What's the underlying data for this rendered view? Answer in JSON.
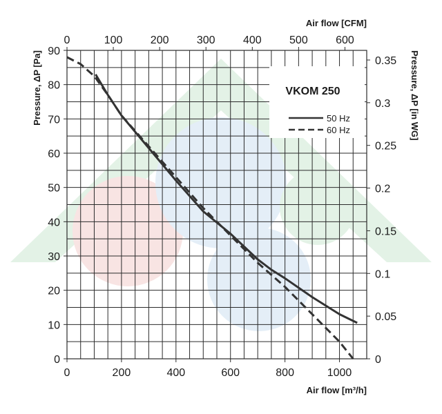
{
  "chart_data": {
    "type": "line",
    "title": "VKOM 250",
    "xlabel": "Air flow [m³/h]",
    "x2label": "Air flow [CFM]",
    "ylabel": "Pressure, ΔP [Pa]",
    "y2label": "Pressure, ΔP [in WG]",
    "xlim": [
      0,
      1100
    ],
    "ylim": [
      0,
      90
    ],
    "x2lim": [
      0,
      647
    ],
    "y2lim": [
      0,
      0.3613
    ],
    "x_ticks": [
      0,
      200,
      400,
      600,
      800,
      1000
    ],
    "x_tick_labels": [
      "0",
      "200",
      "400",
      "600",
      "800",
      "1000"
    ],
    "y_ticks": [
      0,
      10,
      20,
      30,
      40,
      50,
      60,
      70,
      80,
      90
    ],
    "y_tick_labels": [
      "0",
      "10",
      "20",
      "30",
      "40",
      "50",
      "60",
      "70",
      "80",
      "90"
    ],
    "x2_ticks": [
      0,
      100,
      200,
      300,
      400,
      500,
      600
    ],
    "x2_tick_labels": [
      "0",
      "100",
      "200",
      "300",
      "400",
      "500",
      "600"
    ],
    "y2_ticks": [
      0,
      0.05,
      0.1,
      0.15,
      0.2,
      0.25,
      0.3,
      0.35
    ],
    "y2_tick_labels": [
      "0",
      "0.05",
      "0.1",
      "0.15",
      "0.2",
      "0.25",
      "0.3",
      "0.35"
    ],
    "grid": true,
    "legend_position": "top-right",
    "series": [
      {
        "name": "50 Hz",
        "style": "solid",
        "color": "#333333",
        "points": [
          [
            105,
            83
          ],
          [
            150,
            77
          ],
          [
            200,
            71
          ],
          [
            300,
            61.5
          ],
          [
            400,
            52
          ],
          [
            500,
            43
          ],
          [
            600,
            36.5
          ],
          [
            700,
            29
          ],
          [
            750,
            26
          ],
          [
            800,
            23.5
          ],
          [
            900,
            18
          ],
          [
            1000,
            13
          ],
          [
            1065,
            10.5
          ]
        ]
      },
      {
        "name": "60 Hz",
        "style": "dashed",
        "color": "#333333",
        "points": [
          [
            0,
            88
          ],
          [
            50,
            86
          ],
          [
            100,
            82.5
          ],
          [
            150,
            77
          ],
          [
            200,
            71
          ],
          [
            300,
            62
          ],
          [
            400,
            53
          ],
          [
            500,
            44
          ],
          [
            600,
            36
          ],
          [
            700,
            28
          ],
          [
            800,
            21
          ],
          [
            900,
            13
          ],
          [
            1000,
            5
          ],
          [
            1050,
            0
          ]
        ]
      }
    ]
  },
  "colors": {
    "grid": "#2a2a2a",
    "curve": "#333333",
    "watermark_blue": "#e4eef7",
    "watermark_red": "#f8e4e3",
    "watermark_green": "#e3f2e6"
  }
}
